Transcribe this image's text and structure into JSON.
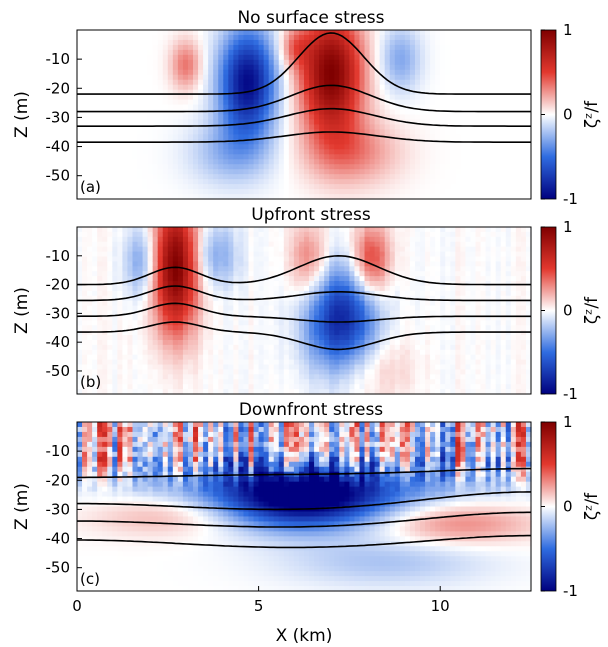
{
  "chart_data": [
    {
      "type": "heatmap",
      "panel_label": "(a)",
      "title": "No surface stress",
      "ylabel": "Z (m)",
      "xlabel": "",
      "xlim": [
        0,
        12.5
      ],
      "ylim": [
        -58,
        0
      ],
      "yticks": [
        -10,
        -20,
        -30,
        -40,
        -50
      ],
      "xticks": [],
      "colorbar": {
        "label": "ζᶻ/f",
        "range": [
          -1,
          1
        ],
        "ticks": [
          "1",
          "0",
          "-1"
        ]
      },
      "field": {
        "blobs": [
          {
            "x": 4.7,
            "z": -18,
            "sx": 0.55,
            "sz": 13,
            "amp": -0.95
          },
          {
            "x": 7.0,
            "z": -15,
            "sx": 0.6,
            "sz": 15,
            "amp": 1.0
          },
          {
            "x": 7.6,
            "z": -42,
            "sx": 0.9,
            "sz": 8,
            "amp": 0.3
          },
          {
            "x": 4.2,
            "z": -42,
            "sx": 0.8,
            "sz": 8,
            "amp": -0.25
          },
          {
            "x": 3.0,
            "z": -12,
            "sx": 0.3,
            "sz": 6,
            "amp": 0.35
          },
          {
            "x": 8.9,
            "z": -10,
            "sx": 0.4,
            "sz": 8,
            "amp": -0.3
          },
          {
            "x": 6.0,
            "z": -6,
            "sx": 0.3,
            "sz": 5,
            "amp": 0.3
          }
        ],
        "noise": 0
      },
      "contours": [
        {
          "base": -22,
          "bumps": [
            {
              "x": 7.0,
              "amp": 21,
              "w": 0.9
            }
          ]
        },
        {
          "base": -28,
          "bumps": [
            {
              "x": 7.0,
              "amp": 9,
              "w": 1.1
            }
          ]
        },
        {
          "base": -33,
          "bumps": [
            {
              "x": 7.0,
              "amp": 6,
              "w": 1.2
            }
          ]
        },
        {
          "base": -38.5,
          "bumps": [
            {
              "x": 7.0,
              "amp": 3.5,
              "w": 1.3
            }
          ]
        }
      ]
    },
    {
      "type": "heatmap",
      "panel_label": "(b)",
      "title": "Upfront stress",
      "ylabel": "Z (m)",
      "xlabel": "",
      "xlim": [
        0,
        12.5
      ],
      "ylim": [
        -58,
        0
      ],
      "yticks": [
        -10,
        -20,
        -30,
        -40,
        -50
      ],
      "xticks": [],
      "colorbar": {
        "label": "ζᶻ/f",
        "range": [
          -1,
          1
        ],
        "ticks": [
          "1",
          "0",
          "-1"
        ]
      },
      "field": {
        "blobs": [
          {
            "x": 2.7,
            "z": -14,
            "sx": 0.45,
            "sz": 16,
            "amp": 1.0
          },
          {
            "x": 7.3,
            "z": -33,
            "sx": 0.7,
            "sz": 13,
            "amp": -0.85
          },
          {
            "x": 8.1,
            "z": -12,
            "sx": 0.35,
            "sz": 9,
            "amp": 0.55
          },
          {
            "x": 6.4,
            "z": -12,
            "sx": 0.35,
            "sz": 9,
            "amp": 0.35
          },
          {
            "x": 1.8,
            "z": -12,
            "sx": 0.35,
            "sz": 9,
            "amp": -0.35
          },
          {
            "x": 3.8,
            "z": -10,
            "sx": 0.45,
            "sz": 8,
            "amp": -0.3
          },
          {
            "x": 8.0,
            "z": -48,
            "sx": 0.8,
            "sz": 9,
            "amp": 0.2
          }
        ],
        "noise": 0.08
      },
      "contours": [
        {
          "base": -20,
          "bumps": [
            {
              "x": 2.7,
              "amp": 6,
              "w": 0.7
            },
            {
              "x": 7.2,
              "amp": 10,
              "w": 1.1
            }
          ]
        },
        {
          "base": -25.5,
          "bumps": [
            {
              "x": 2.7,
              "amp": 5,
              "w": 0.7
            },
            {
              "x": 7.2,
              "amp": 3,
              "w": 1.1
            }
          ]
        },
        {
          "base": -31,
          "bumps": [
            {
              "x": 2.7,
              "amp": 4.5,
              "w": 0.7
            },
            {
              "x": 7.2,
              "amp": -2,
              "w": 1.1
            }
          ]
        },
        {
          "base": -36.5,
          "bumps": [
            {
              "x": 2.7,
              "amp": 3.5,
              "w": 0.7
            },
            {
              "x": 7.2,
              "amp": -6,
              "w": 1.0
            }
          ]
        }
      ]
    },
    {
      "type": "heatmap",
      "panel_label": "(c)",
      "title": "Downfront stress",
      "ylabel": "Z (m)",
      "xlabel": "X (km)",
      "xlim": [
        0,
        12.5
      ],
      "ylim": [
        -58,
        0
      ],
      "yticks": [
        -10,
        -20,
        -30,
        -40,
        -50
      ],
      "xticks": [
        0,
        5,
        10
      ],
      "colorbar": {
        "label": "ζᶻ/f",
        "range": [
          -1,
          1
        ],
        "ticks": [
          "1",
          "0",
          "-1"
        ]
      },
      "field": {
        "blobs": [
          {
            "x": 6.2,
            "z": -27,
            "sx": 1.6,
            "sz": 7,
            "amp": -1.0
          },
          {
            "x": 6.5,
            "z": -20,
            "sx": 3.5,
            "sz": 6,
            "amp": -0.45
          },
          {
            "x": 10.5,
            "z": -35,
            "sx": 1.5,
            "sz": 5,
            "amp": 0.3
          },
          {
            "x": 2.5,
            "z": -32,
            "sx": 1.5,
            "sz": 5,
            "amp": 0.2
          },
          {
            "x": 8.5,
            "z": -48,
            "sx": 2.0,
            "sz": 6,
            "amp": -0.2
          }
        ],
        "noise": 0.7,
        "noise_depth": -14
      },
      "contours": [
        {
          "base": -18,
          "bumps": [
            {
              "x": 0.0,
              "amp": -1,
              "w": 2.5
            },
            {
              "x": 12.5,
              "amp": 2,
              "w": 2.5
            }
          ]
        },
        {
          "base": -31,
          "bumps": [
            {
              "x": 0.0,
              "amp": 3,
              "w": 3.0
            },
            {
              "x": 12.5,
              "amp": 7,
              "w": 3.0
            }
          ]
        },
        {
          "base": -37,
          "bumps": [
            {
              "x": 0.0,
              "amp": 3,
              "w": 3.0
            },
            {
              "x": 12.5,
              "amp": 6,
              "w": 3.0
            }
          ]
        },
        {
          "base": -44,
          "bumps": [
            {
              "x": 0.0,
              "amp": 3.5,
              "w": 3.0
            },
            {
              "x": 12.5,
              "amp": 5,
              "w": 3.0
            }
          ]
        }
      ]
    }
  ],
  "colors": {
    "negative_end": "#00007f",
    "negative_mid": "#2f6ce0",
    "zero": "#ffffff",
    "positive_mid": "#e2382e",
    "positive_end": "#7f0000",
    "contour": "#000000"
  }
}
